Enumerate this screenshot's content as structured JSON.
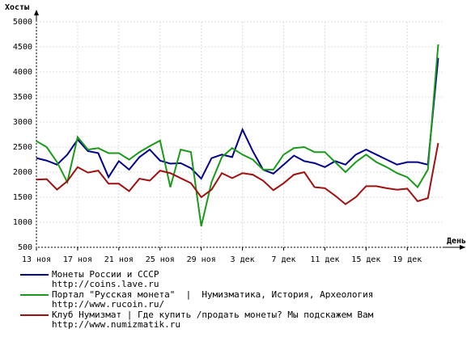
{
  "chart_data": {
    "type": "line",
    "y_label": "Хосты",
    "x_label": "День",
    "categories": [
      "13 ноя",
      null,
      null,
      null,
      "17 ноя",
      null,
      null,
      null,
      "21 ноя",
      null,
      null,
      null,
      "25 ноя",
      null,
      null,
      null,
      "29 ноя",
      null,
      null,
      null,
      "3 дек",
      null,
      null,
      null,
      "7 дек",
      null,
      null,
      null,
      "11 дек",
      null,
      null,
      null,
      "15 дек",
      null,
      null,
      null,
      "19 дек",
      null,
      null,
      null
    ],
    "ylim": [
      500,
      5000
    ],
    "yticks": [
      500,
      1000,
      1500,
      2000,
      2500,
      3000,
      3500,
      4000,
      4500,
      5000
    ],
    "grid": true,
    "series": [
      {
        "name": "Монеты России и СССР",
        "url": "http://coins.lave.ru",
        "color": "#00008b",
        "values": [
          2280,
          2230,
          2150,
          2350,
          2650,
          2420,
          2380,
          1900,
          2220,
          2050,
          2300,
          2450,
          2230,
          2170,
          2180,
          2080,
          1870,
          2280,
          2350,
          2300,
          2850,
          2420,
          2050,
          1970,
          2150,
          2330,
          2220,
          2180,
          2100,
          2220,
          2150,
          2350,
          2450,
          2350,
          2250,
          2150,
          2200,
          2200,
          2150,
          4280
        ]
      },
      {
        "name": "Портал \"Русская монета\"  |  Нумизматика, История, Археология",
        "url": "http://www.rucoin.ru/",
        "color": "#1a9a1a",
        "values": [
          2620,
          2500,
          2200,
          1800,
          2700,
          2450,
          2480,
          2380,
          2380,
          2250,
          2400,
          2520,
          2630,
          1700,
          2450,
          2400,
          920,
          1800,
          2300,
          2480,
          2350,
          2250,
          2050,
          2050,
          2350,
          2480,
          2500,
          2400,
          2400,
          2200,
          2000,
          2200,
          2350,
          2200,
          2100,
          1980,
          1900,
          1700,
          2050,
          4550
        ]
      },
      {
        "name": "Клуб Нумизмат | Где купить /продать монеты? Мы подскажем Вам",
        "url": "http://www.numizmatik.ru",
        "color": "#a01010",
        "values": [
          1850,
          1860,
          1650,
          1820,
          2100,
          1990,
          2030,
          1770,
          1770,
          1620,
          1870,
          1830,
          2030,
          1980,
          1880,
          1780,
          1500,
          1650,
          1980,
          1880,
          1980,
          1950,
          1830,
          1640,
          1780,
          1950,
          2000,
          1700,
          1680,
          1530,
          1360,
          1500,
          1720,
          1720,
          1680,
          1650,
          1670,
          1420,
          1480,
          2580
        ]
      }
    ]
  }
}
